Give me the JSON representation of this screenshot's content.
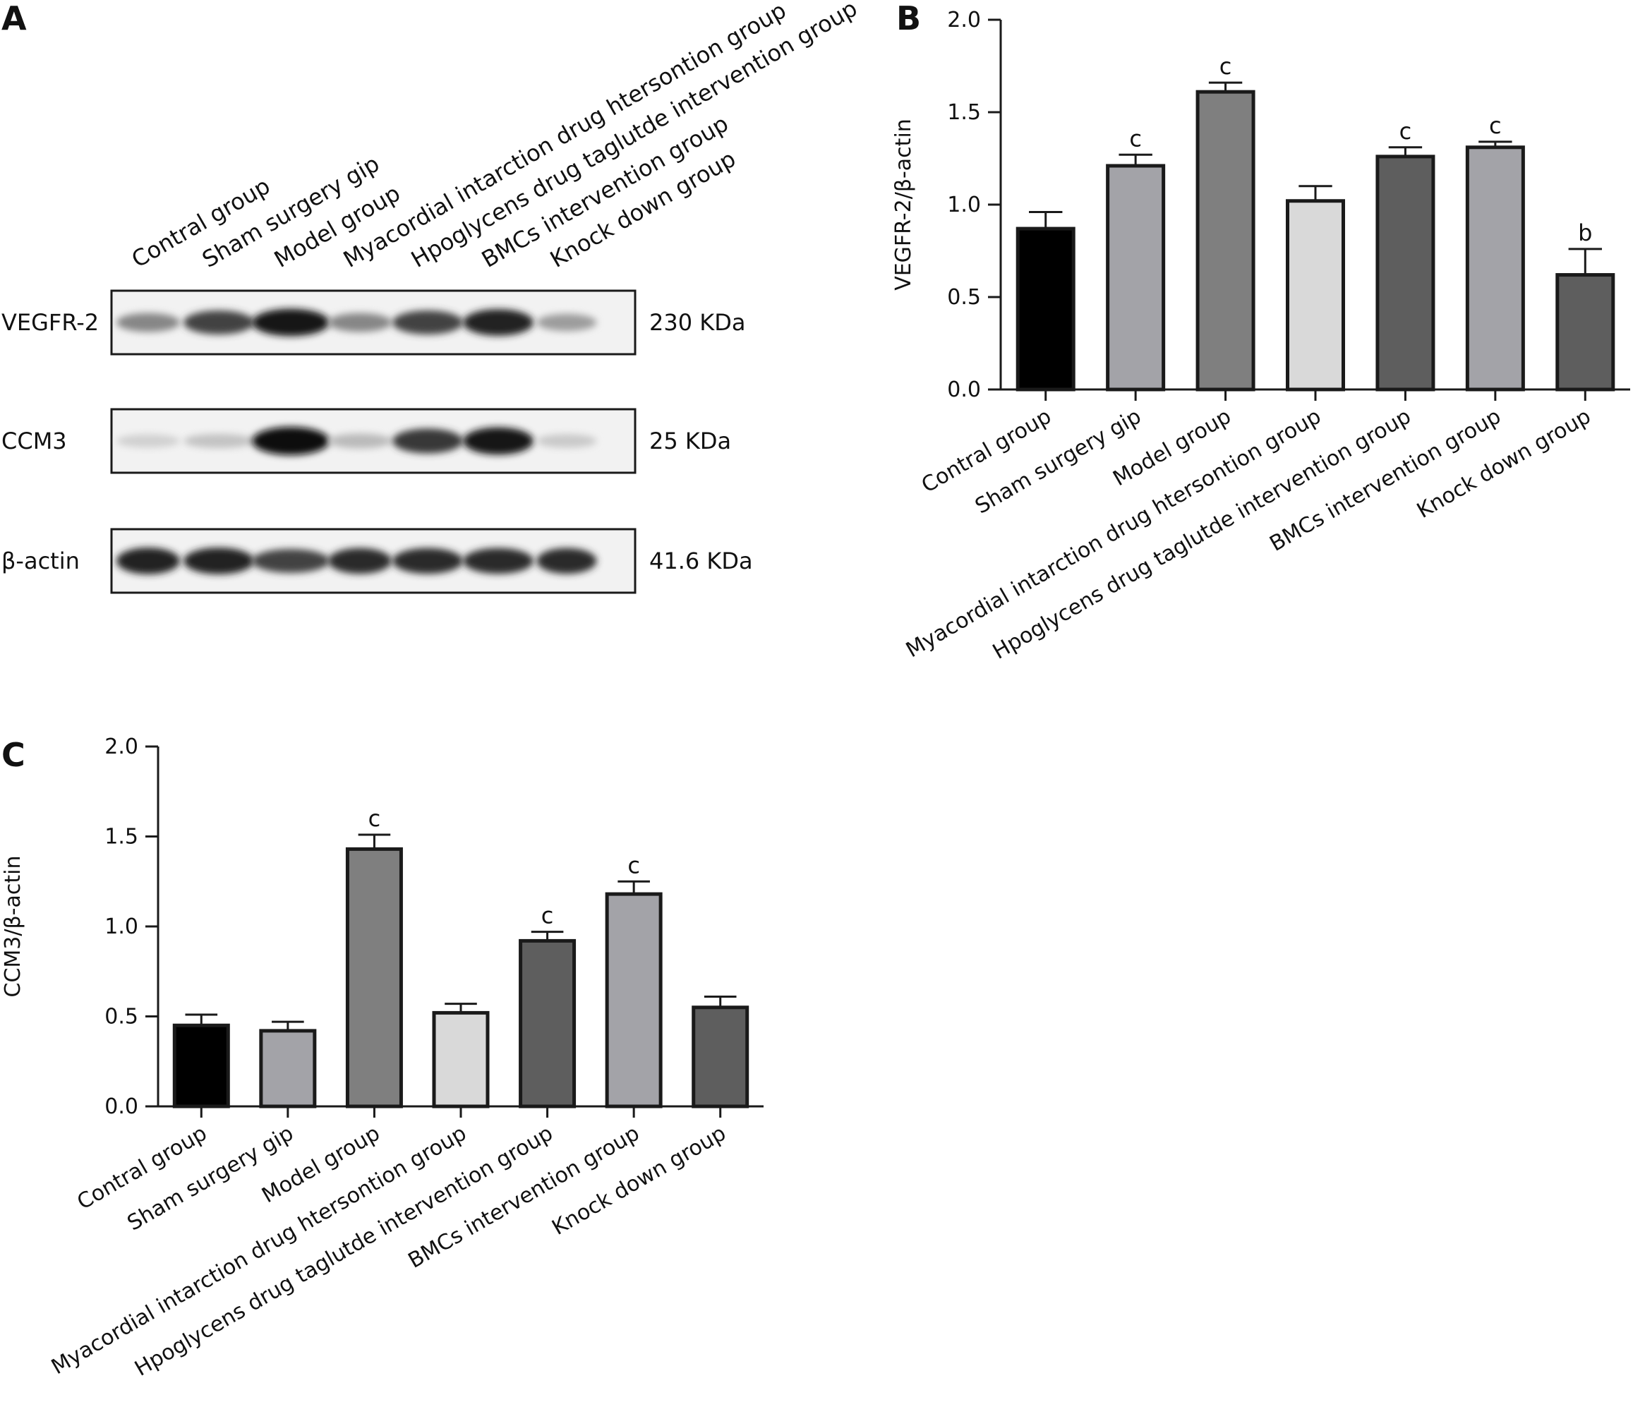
{
  "panels": {
    "a": "A",
    "b": "B",
    "c": "C"
  },
  "blot": {
    "lanes": [
      "Contral group",
      "Sham surgery gip",
      "Model group",
      "Myacordial intarction drug htersontion group",
      "Hpoglycens drug taglutde intervention group",
      "BMCs intervention group",
      "Knock down group"
    ],
    "rows": [
      {
        "protein": "VEGFR-2",
        "size": "230 KDa",
        "intensities": [
          0.45,
          0.75,
          0.95,
          0.45,
          0.75,
          0.9,
          0.35
        ]
      },
      {
        "protein": "CCM3",
        "size": "25 KDa",
        "intensities": [
          0.12,
          0.18,
          1.0,
          0.22,
          0.8,
          0.95,
          0.15
        ]
      },
      {
        "protein": "β-actin",
        "size": "41.6 KDa",
        "intensities": [
          0.9,
          0.9,
          0.75,
          0.85,
          0.85,
          0.85,
          0.85
        ]
      }
    ]
  },
  "chart_data": [
    {
      "type": "bar",
      "panel": "B",
      "ylabel": "VEGFR-2/β-actin",
      "xlabel": "",
      "ylim": [
        0,
        2.0
      ],
      "yticks": [
        "0.0",
        "0.5",
        "1.0",
        "1.5",
        "2.0"
      ],
      "categories": [
        "Contral group",
        "Sham surgery gip",
        "Model group",
        "Myacordial intarction drug htersontion group",
        "Hpoglycens drug taglutde intervention group",
        "BMCs intervention group",
        "Knock down group"
      ],
      "values": [
        0.87,
        1.21,
        1.61,
        1.02,
        1.26,
        1.31,
        0.62
      ],
      "errors": [
        0.09,
        0.06,
        0.05,
        0.08,
        0.05,
        0.03,
        0.14
      ],
      "significance": [
        "",
        "c",
        "c",
        "",
        "c",
        "c",
        "b"
      ],
      "colors": [
        "#000000",
        "#a3a3a8",
        "#7f7f7f",
        "#d9d9d9",
        "#5e5e5e",
        "#a3a3a8",
        "#5e5e5e"
      ],
      "grid": false,
      "legend": "none"
    },
    {
      "type": "bar",
      "panel": "C",
      "ylabel": "CCM3/β-actin",
      "xlabel": "",
      "ylim": [
        0,
        2.0
      ],
      "yticks": [
        "0.0",
        "0.5",
        "1.0",
        "1.5",
        "2.0"
      ],
      "categories": [
        "Contral group",
        "Sham surgery gip",
        "Model group",
        "Myacordial intarction drug htersontion group",
        "Hpoglycens drug taglutde intervention group",
        "BMCs intervention group",
        "Knock down group"
      ],
      "values": [
        0.45,
        0.42,
        1.43,
        0.52,
        0.92,
        1.18,
        0.55
      ],
      "errors": [
        0.06,
        0.05,
        0.08,
        0.05,
        0.05,
        0.07,
        0.06
      ],
      "significance": [
        "",
        "",
        "c",
        "",
        "c",
        "c",
        ""
      ],
      "colors": [
        "#000000",
        "#a3a3a8",
        "#7f7f7f",
        "#d9d9d9",
        "#5e5e5e",
        "#a3a3a8",
        "#5e5e5e"
      ],
      "grid": false,
      "legend": "none"
    }
  ]
}
